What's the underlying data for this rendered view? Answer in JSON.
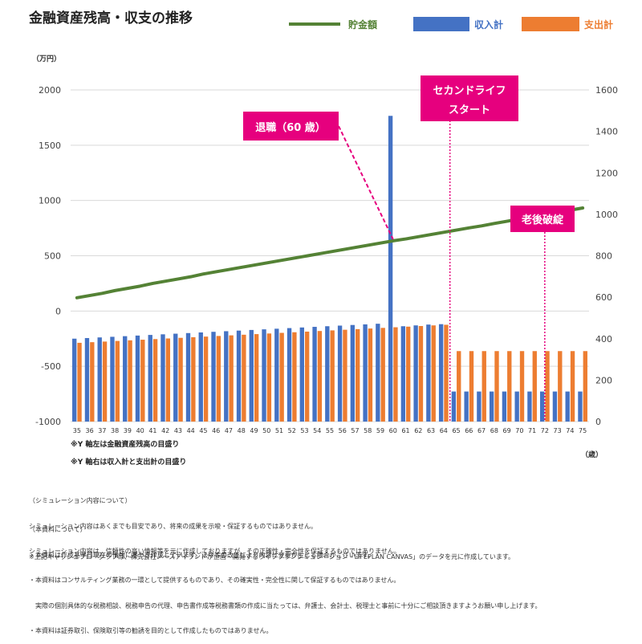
{
  "title": "金融資産残高・収支の推移",
  "legend": {
    "savings": "貯金額",
    "income": "収入計",
    "expense": "支出計"
  },
  "colors": {
    "savings": "#548235",
    "income": "#4472C4",
    "expense": "#ED7D31",
    "callout": "#E6007E",
    "callout_text": "#ffffff"
  },
  "units": {
    "left": "（万円）",
    "right": "（歳）"
  },
  "axis_notes": [
    "※Y 軸左は金融資産残高の目盛り",
    "※Y 軸右は収入計と支出計の目盛り"
  ],
  "callouts": {
    "retirement": "退職（60 歳）",
    "second_life_line1": "セカンドライフ",
    "second_life_line2": "スタート",
    "bankruptcy": "老後破綻"
  },
  "footnotes": {
    "simulation": [
      "（シミュレーション内容について）",
      "シミュレーション内容はあくまでも目安であり、将来の成果を示唆・保証するものではありません。",
      "シミュレーション内容は、信頼性の高い情報等を元に作成しておりますが、その正確性・完全性を保証するものではありません。"
    ],
    "material": [
      "（本資料について）",
      "・本資料は作成基準日現在の情報に基づき作成しています。法令等の改正により内容に変更が生じる場合がございます。",
      "・本資料はコンサルティング業務の一環として提供するものであり、その確実性・完全性に関して保証するものではありません。",
      "　実際の個別具体的な税務相談、税務申告の代理、申告書作成等税務書類の作成に当たっては、弁護士、会計士、税理士と事前に十分にご相談頂きますようお願い申し上げます。",
      "・本資料は証券取引、保険取引等の勧誘を目的として作成したものではありません。"
    ],
    "source": "※上記キャッシュフローグラフは、株式会社ノースアイランドが企画・開発するライフプランシミュレーション「LIFEPLAN CANVAS」のデータを元に作成しています。"
  },
  "chart_data": {
    "type": "bar",
    "title": "金融資産残高・収支の推移",
    "categories": [
      "35",
      "36",
      "37",
      "38",
      "39",
      "40",
      "41",
      "42",
      "43",
      "44",
      "45",
      "46",
      "47",
      "48",
      "49",
      "50",
      "51",
      "52",
      "53",
      "54",
      "55",
      "56",
      "57",
      "58",
      "59",
      "60",
      "61",
      "62",
      "63",
      "64",
      "65",
      "66",
      "67",
      "68",
      "69",
      "70",
      "71",
      "72",
      "73",
      "74",
      "75"
    ],
    "left_axis": {
      "label": "（万円）",
      "min": -1000,
      "max": 2000,
      "ticks": [
        2000,
        1500,
        1000,
        500,
        0,
        -500,
        -1000
      ]
    },
    "right_axis": {
      "label": "",
      "min": 0,
      "max": 1600,
      "ticks": [
        1600,
        1400,
        1200,
        1000,
        800,
        600,
        400,
        200,
        0
      ]
    },
    "xlabel": "（歳）",
    "series": [
      {
        "name": "貯金額",
        "type": "line",
        "axis": "left",
        "values": [
          120,
          140,
          160,
          185,
          205,
          225,
          250,
          270,
          290,
          310,
          335,
          355,
          375,
          395,
          415,
          435,
          455,
          475,
          495,
          515,
          535,
          555,
          575,
          595,
          615,
          635,
          652,
          672,
          692,
          712,
          732,
          752,
          770,
          792,
          812,
          832,
          852,
          872,
          892,
          912,
          932
        ]
      },
      {
        "name": "収入計",
        "type": "bar",
        "axis": "right",
        "values": [
          400,
          403,
          406,
          409,
          412,
          415,
          418,
          421,
          424,
          427,
          430,
          433,
          436,
          439,
          442,
          445,
          448,
          451,
          454,
          457,
          460,
          463,
          466,
          469,
          472,
          1475,
          460,
          464,
          468,
          470,
          145,
          145,
          145,
          145,
          145,
          145,
          145,
          145,
          145,
          145,
          145
        ]
      },
      {
        "name": "支出計",
        "type": "bar",
        "axis": "right",
        "values": [
          380,
          383,
          386,
          389,
          392,
          395,
          398,
          401,
          404,
          407,
          410,
          413,
          416,
          419,
          422,
          425,
          428,
          431,
          434,
          437,
          440,
          443,
          446,
          449,
          452,
          455,
          458,
          461,
          464,
          467,
          340,
          340,
          340,
          340,
          340,
          340,
          340,
          340,
          340,
          340,
          340
        ]
      }
    ],
    "annotations": [
      "退職（60 歳）",
      "セカンドライフ スタート",
      "老後破綻"
    ],
    "legend_position": "top-right"
  }
}
